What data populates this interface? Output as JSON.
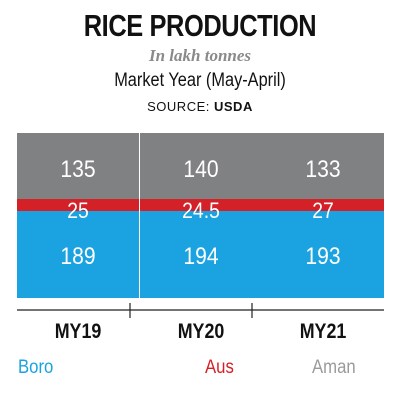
{
  "title": "RICE PRODUCTION",
  "subtitle": "In lakh tonnes",
  "caption": "Market Year (May-April)",
  "source_label": "SOURCE:",
  "source_name": "USDA",
  "chart_data": {
    "type": "bar",
    "stacked": true,
    "categories": [
      "MY19",
      "MY20",
      "MY21"
    ],
    "series": [
      {
        "name": "Boro",
        "color": "#1aa3e0",
        "values": [
          189,
          194,
          193
        ]
      },
      {
        "name": "Aus",
        "color": "#d42027",
        "values": [
          25,
          24.5,
          27
        ]
      },
      {
        "name": "Aman",
        "color": "#808183",
        "values": [
          135,
          140,
          133
        ]
      }
    ],
    "data_labels": [
      [
        "189",
        "194",
        "193"
      ],
      [
        "25",
        "24.5",
        "27"
      ],
      [
        "135",
        "140",
        "133"
      ]
    ],
    "legend_position": "bottom"
  }
}
